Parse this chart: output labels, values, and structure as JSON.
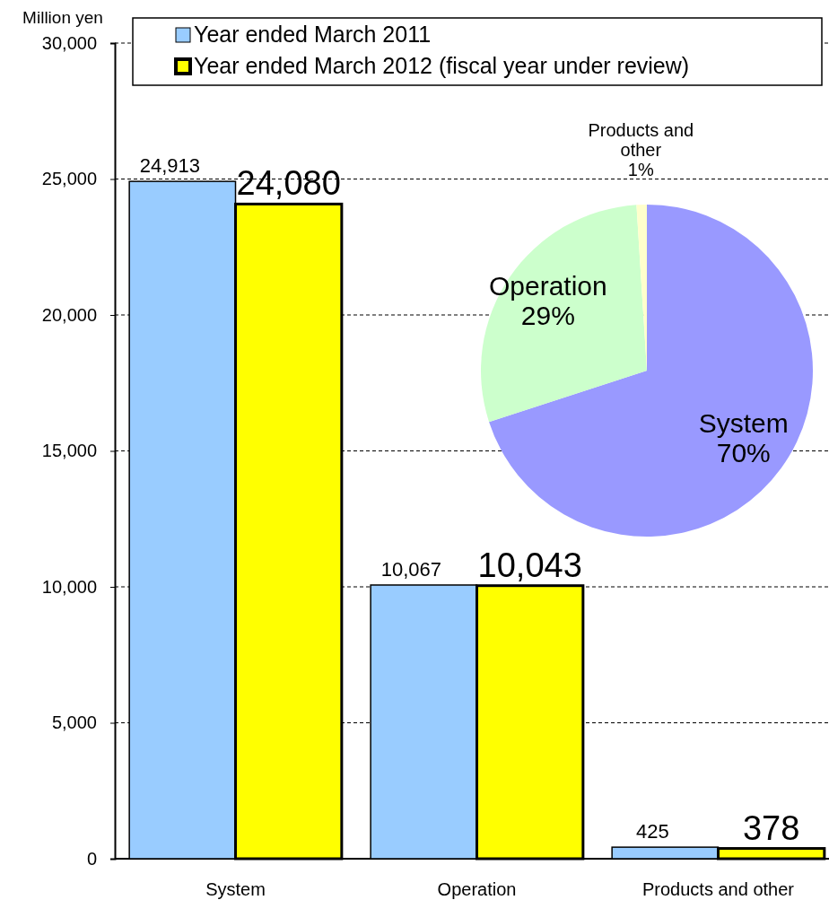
{
  "chart_data": [
    {
      "type": "bar",
      "ylabel": "Million yen",
      "categories": [
        "System",
        "Operation",
        "Products and other"
      ],
      "series": [
        {
          "name": "Year ended March 2011",
          "color": "#99ccff",
          "values": [
            24913,
            10067,
            425
          ],
          "value_labels": [
            "24,913",
            "10,067",
            "425"
          ]
        },
        {
          "name": "Year ended March 2012 (fiscal year under review)",
          "color": "#ffff00",
          "values": [
            24080,
            10043,
            378
          ],
          "value_labels": [
            "24,080",
            "10,043",
            "378"
          ]
        }
      ],
      "ylim": [
        0,
        30000
      ],
      "yticks": [
        {
          "value": 0,
          "label": "0"
        },
        {
          "value": 5000,
          "label": "5,000"
        },
        {
          "value": 10000,
          "label": "10,000"
        },
        {
          "value": 15000,
          "label": "15,000"
        },
        {
          "value": 20000,
          "label": "20,000"
        },
        {
          "value": 25000,
          "label": "25,000"
        },
        {
          "value": 30000,
          "label": "30,000"
        }
      ],
      "grid": "y",
      "legend": "top"
    },
    {
      "type": "pie",
      "categories": [
        "System",
        "Operation",
        "Products and other"
      ],
      "values": [
        70,
        29,
        1
      ],
      "colors": [
        "#9999ff",
        "#ccffcc",
        "#ffffcc"
      ],
      "value_labels": [
        "70%",
        "29%",
        "1%"
      ]
    }
  ]
}
